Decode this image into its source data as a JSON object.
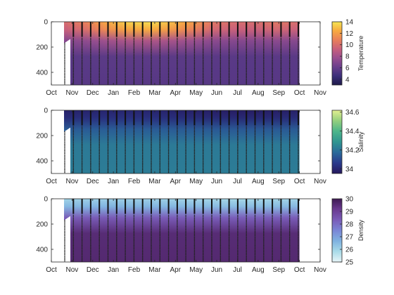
{
  "chart_data": [
    {
      "type": "heatmap",
      "title": "",
      "xlabel": "",
      "ylabel": "",
      "x_tick_labels": [
        "Oct",
        "Nov",
        "Dec",
        "Jan",
        "Feb",
        "Mar",
        "Apr",
        "May",
        "Jun",
        "Jul",
        "Aug",
        "Sep",
        "Oct",
        "Nov"
      ],
      "y_tick_labels": [
        "0",
        "200",
        "400"
      ],
      "ylim": [
        500,
        0
      ],
      "colorbar_label": "Temperature",
      "colorbar_ticks": [
        "4",
        "6",
        "8",
        "10",
        "12",
        "14"
      ],
      "colorbar_range": [
        3,
        14
      ],
      "colormap": [
        "#1e1a4a",
        "#3b2f7a",
        "#6a3f8c",
        "#9a4f8f",
        "#c8607c",
        "#e97f5a",
        "#f7a940",
        "#f5e552"
      ],
      "surface_profile": {
        "months": [
          "Nov",
          "Dec",
          "Jan",
          "Feb",
          "Mar",
          "Apr",
          "May",
          "Jun",
          "Jul",
          "Aug",
          "Sep",
          "Oct"
        ],
        "values": [
          10.0,
          11.0,
          12.5,
          13.5,
          13.8,
          13.0,
          12.0,
          10.5,
          10.0,
          10.0,
          10.5,
          10.0
        ]
      },
      "deep_value": 5.5
    },
    {
      "type": "heatmap",
      "title": "",
      "xlabel": "",
      "ylabel": "",
      "x_tick_labels": [
        "Oct",
        "Nov",
        "Dec",
        "Jan",
        "Feb",
        "Mar",
        "Apr",
        "May",
        "Jun",
        "Jul",
        "Aug",
        "Sep",
        "Oct",
        "Nov"
      ],
      "y_tick_labels": [
        "0",
        "200",
        "400"
      ],
      "ylim": [
        500,
        0
      ],
      "colorbar_label": "Salinity",
      "colorbar_ticks": [
        "34",
        "34.2",
        "34.4",
        "34.6"
      ],
      "colorbar_range": [
        33.95,
        34.62
      ],
      "colormap": [
        "#26185c",
        "#2a3a8c",
        "#2a6a9a",
        "#2f9590",
        "#4cb58a",
        "#93cf7e",
        "#e3ef90"
      ],
      "surface_value": 33.98,
      "deep_value": 34.22
    },
    {
      "type": "heatmap",
      "title": "",
      "xlabel": "",
      "ylabel": "",
      "x_tick_labels": [
        "Oct",
        "Nov",
        "Dec",
        "Jan",
        "Feb",
        "Mar",
        "Apr",
        "May",
        "Jun",
        "Jul",
        "Aug",
        "Sep",
        "Oct",
        "Nov"
      ],
      "y_tick_labels": [
        "0",
        "200",
        "400"
      ],
      "ylim": [
        500,
        0
      ],
      "colorbar_label": "Density",
      "colorbar_ticks": [
        "25",
        "26",
        "27",
        "28",
        "29",
        "30"
      ],
      "colorbar_range": [
        25,
        30
      ],
      "colormap": [
        "#e6f5f8",
        "#a9dbe8",
        "#7fb2e0",
        "#7a86d6",
        "#7a5cb8",
        "#6a3a90",
        "#3f1a52"
      ],
      "surface_value": 26.0,
      "deep_value": 29.6
    }
  ]
}
